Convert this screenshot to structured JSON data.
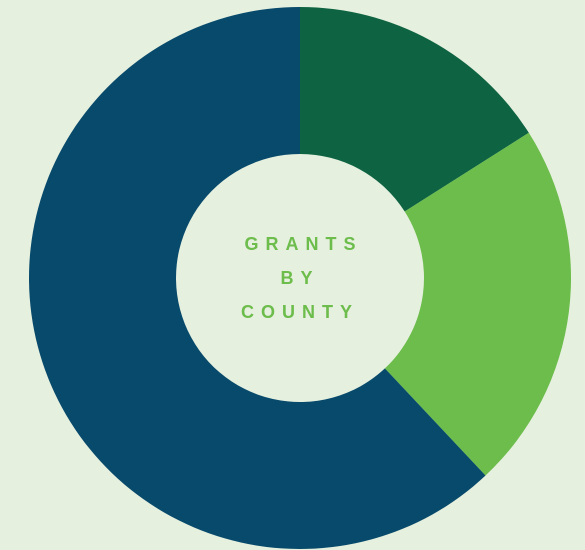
{
  "chart_data": {
    "type": "donut",
    "title": "GRANTS BY COUNTY",
    "values": [
      16,
      22,
      62
    ],
    "colors": [
      "#0e6442",
      "#6cbd4b",
      "#084a6b"
    ]
  }
}
